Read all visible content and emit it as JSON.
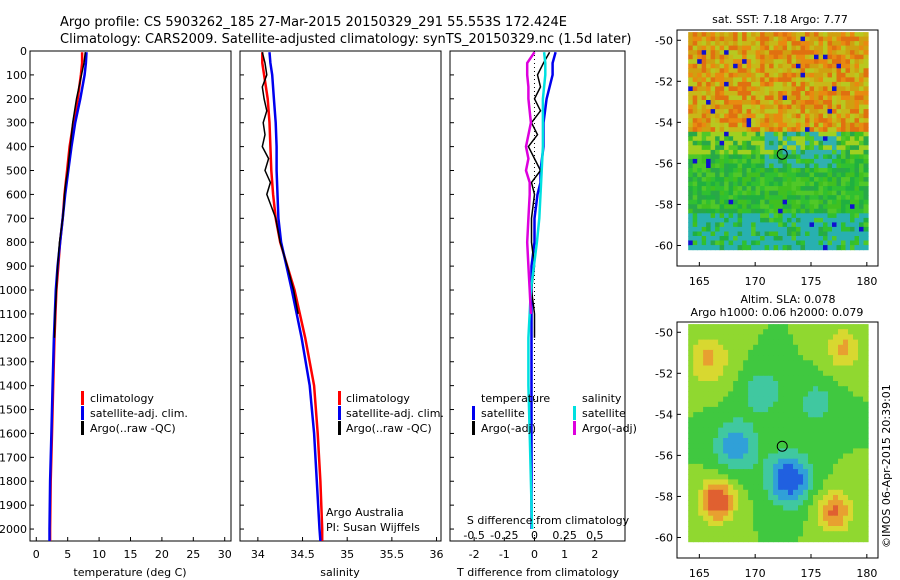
{
  "figure": {
    "title_line1": "Argo profile: CS 5903262_185 27-Mar-2015 20150329_291 55.553S 172.424E",
    "title_line2": "Climatology: CARS2009. Satellite-adjusted climatology: synTS_20150329.nc (1.5d later)",
    "credit": "Argo Australia",
    "pi": "PI: Susan Wijffels",
    "imos_stamp": "©IMOS 06-Apr-2015 20:39:01"
  },
  "colors": {
    "climatology": "#ff0000",
    "satellite": "#0000ee",
    "argo": "#000000",
    "sal_satellite": "#00e0e0",
    "sal_argo": "#dd00dd",
    "zero_line": "#000000"
  },
  "chart_data": [
    {
      "type": "line",
      "panel": "temperature",
      "xlabel": "temperature (deg C)",
      "xlim": [
        -1,
        31
      ],
      "xticks": [
        0,
        5,
        10,
        15,
        20,
        25,
        30
      ],
      "ylim": [
        2050,
        0
      ],
      "yticks": [
        0,
        100,
        200,
        300,
        400,
        500,
        600,
        700,
        800,
        900,
        1000,
        1100,
        1200,
        1300,
        1400,
        1500,
        1600,
        1700,
        1800,
        1900,
        2000
      ],
      "legend": [
        "climatology",
        "satellite-adj. clim.",
        "Argo(..raw -QC)"
      ],
      "series": [
        {
          "name": "climatology",
          "color_key": "climatology",
          "depth": [
            5,
            50,
            100,
            200,
            300,
            400,
            500,
            600,
            700,
            800,
            900,
            1000,
            1200,
            1400,
            1600,
            1800,
            2000,
            2050
          ],
          "values": [
            7.3,
            7.3,
            7.1,
            6.6,
            5.9,
            5.3,
            4.9,
            4.5,
            4.2,
            3.8,
            3.5,
            3.2,
            2.9,
            2.7,
            2.5,
            2.3,
            2.2,
            2.2
          ]
        },
        {
          "name": "satellite-adj. clim.",
          "color_key": "satellite",
          "depth": [
            5,
            50,
            100,
            200,
            300,
            400,
            500,
            600,
            700,
            800,
            900,
            1000,
            1200,
            1400,
            1600,
            1800,
            2000,
            2050
          ],
          "values": [
            8.0,
            7.9,
            7.7,
            7.0,
            6.2,
            5.6,
            5.1,
            4.6,
            4.2,
            3.8,
            3.4,
            3.1,
            2.8,
            2.6,
            2.4,
            2.2,
            2.1,
            2.1
          ]
        },
        {
          "name": "Argo(..raw -QC)",
          "color_key": "argo",
          "depth": [
            5,
            50,
            100,
            150,
            200,
            300,
            350,
            400,
            450,
            500,
            550,
            600,
            650,
            700,
            800,
            900,
            1000,
            1100,
            1200
          ],
          "values": [
            7.8,
            7.6,
            7.2,
            6.8,
            6.4,
            5.8,
            5.6,
            5.4,
            5.2,
            5.0,
            4.7,
            4.5,
            4.4,
            4.2,
            3.7,
            3.4,
            3.2,
            3.0,
            2.9
          ]
        }
      ]
    },
    {
      "type": "line",
      "panel": "salinity",
      "xlabel": "salinity",
      "xlim": [
        33.8,
        36.05
      ],
      "xticks": [
        34,
        34.5,
        35,
        35.5,
        36
      ],
      "ylim": [
        2050,
        0
      ],
      "legend": [
        "climatology",
        "satellite-adj. clim.",
        "Argo(..raw -QC)"
      ],
      "series": [
        {
          "name": "climatology",
          "color_key": "climatology",
          "depth": [
            5,
            50,
            100,
            200,
            300,
            400,
            500,
            600,
            700,
            800,
            900,
            1000,
            1200,
            1400,
            1600,
            1800,
            2000,
            2050
          ],
          "values": [
            34.05,
            34.05,
            34.07,
            34.11,
            34.13,
            34.14,
            34.15,
            34.17,
            34.2,
            34.25,
            34.33,
            34.41,
            34.53,
            34.63,
            34.67,
            34.7,
            34.72,
            34.72
          ]
        },
        {
          "name": "satellite-adj. clim.",
          "color_key": "satellite",
          "depth": [
            5,
            50,
            100,
            200,
            300,
            400,
            500,
            600,
            700,
            800,
            900,
            1000,
            1200,
            1400,
            1600,
            1800,
            2000,
            2050
          ],
          "values": [
            34.13,
            34.14,
            34.16,
            34.18,
            34.2,
            34.21,
            34.21,
            34.22,
            34.23,
            34.26,
            34.32,
            34.38,
            34.49,
            34.58,
            34.63,
            34.66,
            34.69,
            34.7
          ]
        },
        {
          "name": "Argo(..raw -QC)",
          "color_key": "argo",
          "depth": [
            5,
            50,
            100,
            150,
            200,
            250,
            300,
            350,
            400,
            450,
            500,
            550,
            600,
            650,
            700,
            800,
            900,
            1000,
            1100
          ],
          "values": [
            34.05,
            34.08,
            34.1,
            34.05,
            34.07,
            34.1,
            34.06,
            34.08,
            34.05,
            34.12,
            34.08,
            34.14,
            34.1,
            34.15,
            34.2,
            34.25,
            34.33,
            34.4,
            34.45
          ]
        }
      ]
    },
    {
      "type": "line",
      "panel": "differences",
      "xlabel": "T difference from climatology",
      "xlabel_top": "S difference from climatology",
      "xlim": [
        -2.8,
        3.0
      ],
      "xticks": [
        -2,
        -1,
        0,
        1,
        2
      ],
      "sticks": [
        -0.5,
        -0.25,
        0,
        0.25,
        0.5
      ],
      "ylim": [
        2050,
        0
      ],
      "legend_headers": [
        "temperature",
        "salinity"
      ],
      "legend": [
        "satellite",
        "Argo(-adj)",
        "satellite",
        "Argo(-adj)"
      ],
      "series": [
        {
          "name": "temperature satellite",
          "color_key": "satellite",
          "depth": [
            5,
            50,
            100,
            200,
            300,
            400,
            500,
            550,
            600,
            700,
            800,
            900,
            1000,
            1200,
            1400,
            1600,
            1800,
            2000
          ],
          "values": [
            0.7,
            0.6,
            0.6,
            0.4,
            0.3,
            0.3,
            0.2,
            0.2,
            0.1,
            0.0,
            0.0,
            -0.1,
            -0.1,
            -0.1,
            -0.1,
            -0.1,
            -0.1,
            -0.1
          ]
        },
        {
          "name": "temperature Argo(-adj)",
          "color_key": "argo",
          "depth": [
            5,
            50,
            100,
            150,
            200,
            250,
            300,
            350,
            400,
            450,
            500,
            550,
            600,
            700,
            800,
            900,
            1000,
            1100,
            1200
          ],
          "values": [
            0.5,
            0.3,
            0.1,
            0.2,
            0.0,
            0.2,
            -0.1,
            0.1,
            -0.2,
            0.0,
            0.2,
            -0.1,
            0.0,
            -0.1,
            -0.1,
            0.0,
            -0.1,
            0.0,
            0.0
          ]
        },
        {
          "name": "salinity satellite",
          "color_key": "sal_satellite",
          "depth": [
            5,
            50,
            100,
            200,
            300,
            400,
            500,
            600,
            700,
            800,
            1000,
            1200,
            1400,
            1600,
            1800,
            2000
          ],
          "values": [
            0.08,
            0.09,
            0.09,
            0.07,
            0.07,
            0.07,
            0.06,
            0.05,
            0.04,
            0.02,
            -0.03,
            -0.05,
            -0.05,
            -0.04,
            -0.03,
            -0.02
          ]
        },
        {
          "name": "salinity Argo(-adj)",
          "color_key": "sal_argo",
          "depth": [
            5,
            50,
            100,
            150,
            200,
            300,
            400,
            450,
            500,
            550,
            600,
            700,
            800,
            900,
            1000,
            1100
          ],
          "values": [
            0.0,
            -0.06,
            -0.06,
            -0.05,
            -0.05,
            -0.03,
            -0.07,
            -0.05,
            -0.07,
            -0.04,
            -0.04,
            -0.05,
            -0.06,
            -0.05,
            -0.04,
            -0.03
          ]
        }
      ]
    },
    {
      "type": "heatmap",
      "panel": "sst_map",
      "title": "sat. SST: 7.18 Argo: 7.77",
      "xlim": [
        163,
        181
      ],
      "ylim": [
        -61,
        -49.5
      ],
      "xticks": [
        165,
        170,
        175,
        180
      ],
      "yticks": [
        -50,
        -52,
        -54,
        -56,
        -58,
        -60
      ],
      "profile_marker": {
        "lon": 172.424,
        "lat": -55.553
      }
    },
    {
      "type": "heatmap",
      "panel": "sla_map",
      "title_line1": "Altim. SLA: 0.078",
      "title_line2": "Argo h1000: 0.06 h2000: 0.079",
      "xlim": [
        163,
        181
      ],
      "ylim": [
        -61,
        -49.5
      ],
      "xticks": [
        165,
        170,
        175,
        180
      ],
      "yticks": [
        -50,
        -52,
        -54,
        -56,
        -58,
        -60
      ],
      "profile_marker": {
        "lon": 172.424,
        "lat": -55.553
      }
    }
  ]
}
